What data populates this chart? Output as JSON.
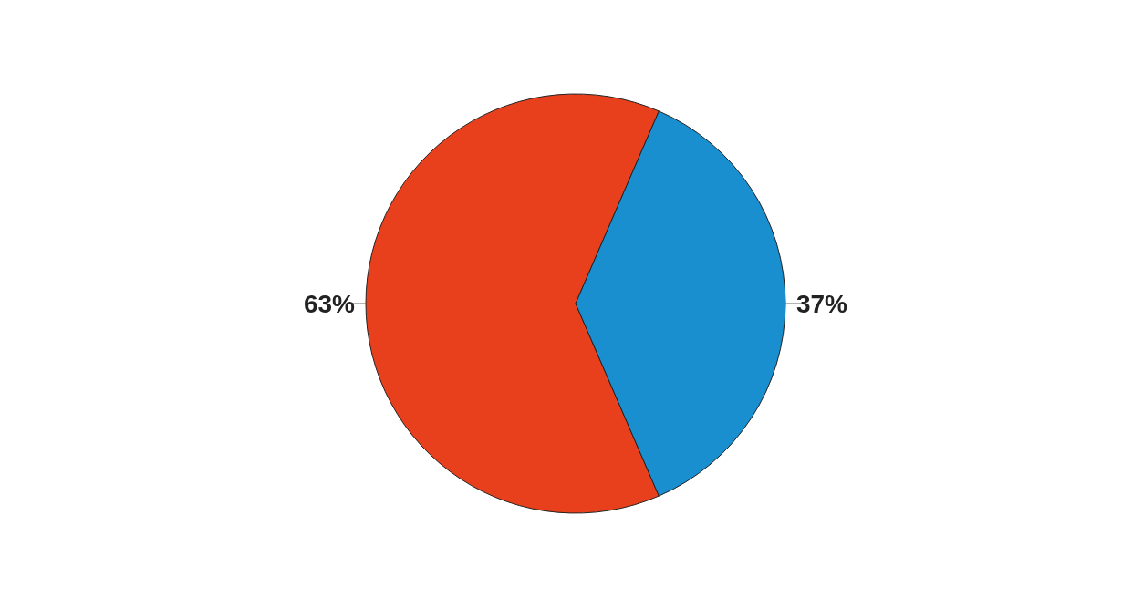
{
  "chart_data": {
    "type": "pie",
    "categories": [
      null,
      null
    ],
    "values": [
      63,
      37
    ],
    "colors": [
      "#e8401c",
      "#1a8fd0"
    ],
    "value_labels": [
      "63%",
      "37%"
    ]
  }
}
